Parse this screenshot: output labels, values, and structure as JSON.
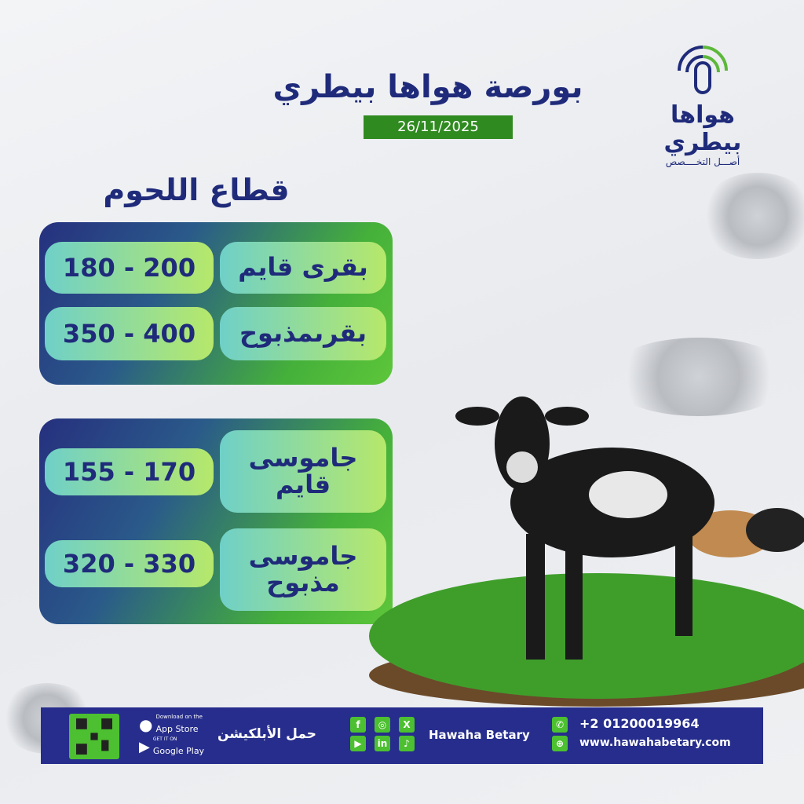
{
  "header": {
    "title": "بورصة هواها بيطري",
    "date": "26/11/2025"
  },
  "logo": {
    "name": "هواها بيطري",
    "tagline": "أصـــل التخــــصص"
  },
  "section_title": "قطاع اللحوم",
  "cards": [
    {
      "rows": [
        {
          "label": "بقرى قايم",
          "value": "180 - 200"
        },
        {
          "label": "بقرىمذبوح",
          "value": "350 - 400"
        }
      ]
    },
    {
      "rows": [
        {
          "label": "جاموسى قايم",
          "value": "155 - 170"
        },
        {
          "label": "جاموسى مذبوح",
          "value": "320 - 330"
        }
      ]
    }
  ],
  "footer": {
    "app_store_small": "Download on the",
    "app_store": "App Store",
    "google_small": "GET IT ON",
    "google": "Google Play",
    "download_app": "حمل الأبلكيشن",
    "brand": "Hawaha Betary",
    "phone": "+2 01200019964",
    "website": "www.hawahabetary.com",
    "social": [
      "f",
      "◎",
      "X",
      "▶",
      "in",
      "♪"
    ]
  },
  "colors": {
    "navy": "#1f2b7a",
    "green": "#2f8a1f",
    "footer": "#262d8c",
    "accent": "#4cc030"
  }
}
